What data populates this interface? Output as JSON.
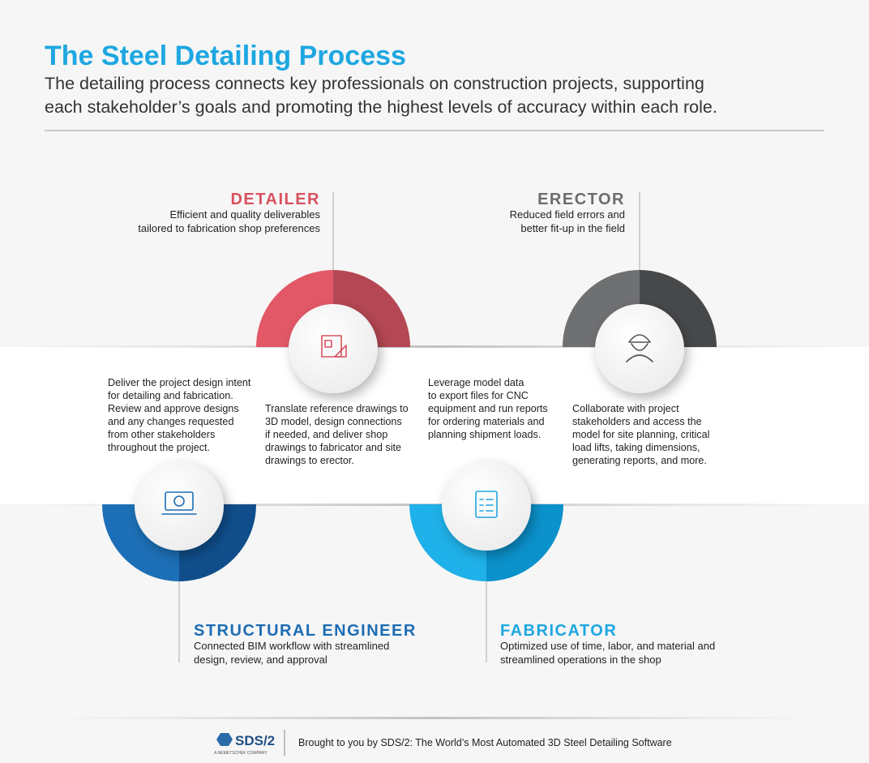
{
  "header": {
    "title": "The Steel Detailing Process",
    "subtitle": [
      "The detailing process connects key professionals on construction projects, supporting",
      "each stakeholder’s goals and promoting the highest levels of accuracy within each role."
    ]
  },
  "roles": [
    {
      "title": "DETAILER",
      "goal": [
        "Efficient and quality deliverables",
        "tailored to fabrication shop preferences"
      ],
      "description": [
        "Translate reference drawings to",
        "3D model, design connections",
        "if needed, and deliver shop",
        "drawings to fabricator and site",
        "drawings to erector."
      ]
    },
    {
      "title": "ERECTOR",
      "goal": [
        "Reduced field errors and",
        "better fit-up in the field"
      ],
      "description": [
        "Collaborate with project",
        "stakeholders and access the",
        "model for site planning, critical",
        "load lifts, taking dimensions,",
        "generating reports, and more."
      ]
    },
    {
      "title": "STRUCTURAL ENGINEER",
      "goal": [
        "Connected BIM workflow with streamlined",
        "design, review, and approval"
      ],
      "description": [
        "Deliver the project design intent",
        "for detailing and fabrication.",
        "Review and approve designs",
        "and any changes requested",
        "from other stakeholders",
        "throughout the project."
      ]
    },
    {
      "title": "FABRICATOR",
      "goal": [
        "Optimized use of time, labor, and material and",
        "streamlined operations in the shop"
      ],
      "description": [
        "Leverage model data",
        "to export files for CNC",
        "equipment and run reports",
        "for ordering materials and",
        "planning shipment loads."
      ]
    }
  ],
  "footer": {
    "logo": "SDS/2",
    "logo_sub": "A NEMETSCHEK COMPANY",
    "tagline": "Brought to you by SDS/2: The World’s Most Automated 3D Steel Detailing Software"
  }
}
